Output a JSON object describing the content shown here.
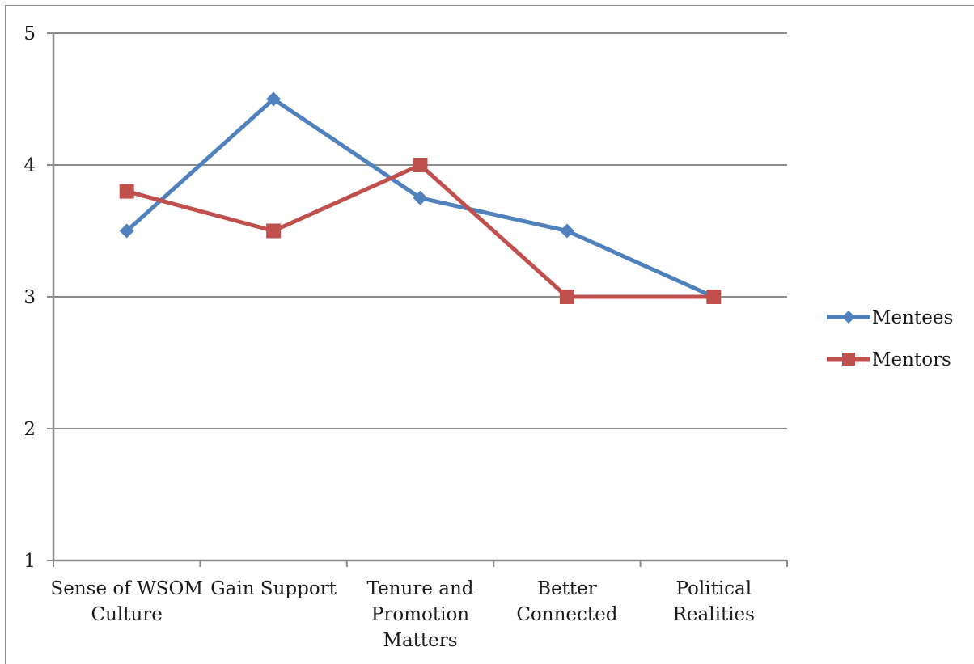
{
  "chart_data": {
    "type": "line",
    "title": "",
    "xlabel": "",
    "ylabel": "",
    "categories": [
      [
        "Sense of WSOM",
        "Culture"
      ],
      [
        "Gain Support"
      ],
      [
        "Tenure and",
        "Promotion",
        "Matters"
      ],
      [
        "Better",
        "Connected"
      ],
      [
        "Political",
        "Realities"
      ]
    ],
    "ylim": [
      1,
      5
    ],
    "yticks": [
      1,
      2,
      3,
      4,
      5
    ],
    "grid": true,
    "legend_position": "right",
    "series": [
      {
        "name": "Mentees",
        "values": [
          3.5,
          4.5,
          3.75,
          3.5,
          3.0
        ],
        "color": "#4f81bd",
        "marker": "diamond"
      },
      {
        "name": "Mentors",
        "values": [
          3.8,
          3.5,
          4.0,
          3.0,
          3.0
        ],
        "color": "#c0504d",
        "marker": "square"
      }
    ]
  },
  "colors": {
    "axis": "#8c8c8c",
    "grid": "#8c8c8c"
  }
}
